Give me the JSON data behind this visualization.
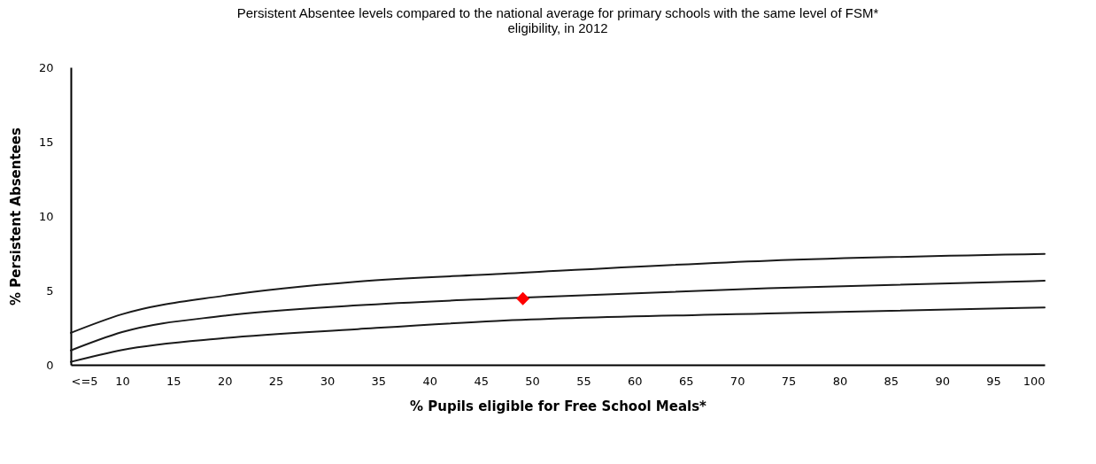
{
  "chart_data": {
    "type": "line",
    "title": "Persistent Absentee levels compared to the national average for primary schools with the same level of FSM* eligibility, in 2012",
    "xlabel": "% Pupils eligible for Free School Meals*",
    "ylabel": "% Persistent Absentees",
    "x": [
      5,
      10,
      20,
      33,
      46.5,
      73,
      100
    ],
    "series": [
      {
        "color": "#1a1a1a",
        "values": [
          2.15,
          3.4,
          4.65,
          5.6,
          6.1,
          7.0,
          7.45
        ]
      },
      {
        "color": "#1a1a1a",
        "values": [
          0.97,
          2.2,
          3.3,
          4.0,
          4.45,
          5.15,
          5.65
        ]
      },
      {
        "color": "#1a1a1a",
        "values": [
          0.2,
          1.0,
          1.8,
          2.4,
          2.95,
          3.45,
          3.85
        ]
      },
      {
        "type": "scatter",
        "marker": "diamond",
        "color": "#ff0000",
        "x": [
          49.1
        ],
        "values": [
          4.45
        ]
      }
    ],
    "xlim": [
      5,
      100
    ],
    "xticks": [
      {
        "value": 5,
        "label": "<=5"
      },
      10,
      15,
      20,
      25,
      30,
      35,
      40,
      45,
      50,
      55,
      60,
      65,
      70,
      75,
      80,
      85,
      90,
      95,
      100
    ],
    "ylim": [
      0,
      20
    ],
    "yticks": [
      0,
      5,
      10,
      15,
      20
    ],
    "grid": false
  }
}
